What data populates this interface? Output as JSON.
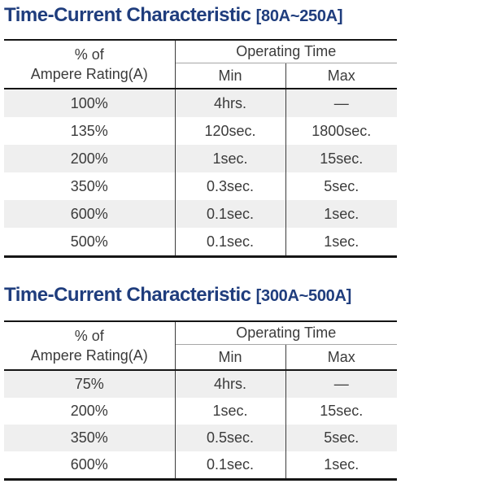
{
  "colors": {
    "title_navy": "#1f3d7d",
    "row_shade": "#efefef",
    "border_black": "#151515",
    "header_divider_gray": "#a6a6a6",
    "column_line_dark": "#3c3c3c",
    "body_text": "#3b3b3b"
  },
  "headers": {
    "rating_line1": "% of",
    "rating_line2": "Ampere Rating(A)",
    "operating_time": "Operating Time",
    "min": "Min",
    "max": "Max"
  },
  "section1": {
    "title": "Time-Current Characteristic",
    "range": "[80A~250A]",
    "rows": [
      {
        "rating": "100%",
        "min": "4hrs.",
        "max": "—"
      },
      {
        "rating": "135%",
        "min": "120sec.",
        "max": "1800sec."
      },
      {
        "rating": "200%",
        "min": "1sec.",
        "max": "15sec."
      },
      {
        "rating": "350%",
        "min": "0.3sec.",
        "max": "5sec."
      },
      {
        "rating": "600%",
        "min": "0.1sec.",
        "max": "1sec."
      },
      {
        "rating": "500%",
        "min": "0.1sec.",
        "max": "1sec."
      }
    ]
  },
  "section2": {
    "title": "Time-Current Characteristic",
    "range": "[300A~500A]",
    "rows": [
      {
        "rating": "75%",
        "min": "4hrs.",
        "max": "—"
      },
      {
        "rating": "200%",
        "min": "1sec.",
        "max": "15sec."
      },
      {
        "rating": "350%",
        "min": "0.5sec.",
        "max": "5sec."
      },
      {
        "rating": "600%",
        "min": "0.1sec.",
        "max": "1sec."
      }
    ]
  }
}
